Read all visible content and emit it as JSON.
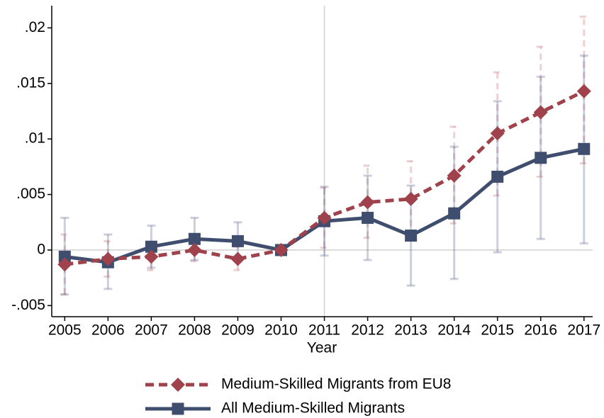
{
  "chart_data": {
    "type": "line",
    "x_label": "Year",
    "x": [
      2005,
      2006,
      2007,
      2008,
      2009,
      2010,
      2011,
      2012,
      2013,
      2014,
      2015,
      2016,
      2017
    ],
    "xlim": [
      2004.7,
      2017.2
    ],
    "xticks": [
      2005,
      2006,
      2007,
      2008,
      2009,
      2010,
      2011,
      2012,
      2013,
      2014,
      2015,
      2016,
      2017
    ],
    "ylim": [
      -0.006,
      0.022
    ],
    "yticks": [
      {
        "value": -0.005,
        "label": "-.005"
      },
      0,
      {
        "value": 0.005,
        "label": ".005"
      },
      {
        "value": 0.01,
        "label": ".01"
      },
      {
        "value": 0.015,
        "label": ".015"
      },
      {
        "value": 0.02,
        "label": ".02"
      }
    ],
    "reference_x": 2011,
    "reference_y": 0,
    "series": [
      {
        "name": "Medium-Skilled Migrants from EU8",
        "color": "#a0424b",
        "dashed": true,
        "marker": "diamond",
        "values": [
          -0.0013,
          -0.0008,
          -0.0006,
          0.0,
          -0.0008,
          0.0,
          0.0029,
          0.0043,
          0.0046,
          0.0067,
          0.0105,
          0.0124,
          0.0143
        ],
        "ci_low": [
          -0.004,
          -0.0024,
          -0.0018,
          -0.001,
          -0.0018,
          0.0,
          0.0002,
          0.0011,
          0.0012,
          0.0024,
          0.0049,
          0.0066,
          0.0078
        ],
        "ci_high": [
          0.0014,
          0.0008,
          0.0006,
          0.0008,
          0.0003,
          0.0,
          0.0056,
          0.0076,
          0.008,
          0.0111,
          0.016,
          0.0183,
          0.021
        ]
      },
      {
        "name": "All Medium-Skilled Migrants",
        "color": "#3f4d6e",
        "dashed": false,
        "marker": "square",
        "values": [
          -0.0006,
          -0.0011,
          0.0003,
          0.001,
          0.0008,
          0.0,
          0.0026,
          0.0029,
          0.0013,
          0.0033,
          0.0066,
          0.0083,
          0.0091
        ],
        "ci_low": [
          -0.004,
          -0.0035,
          -0.0016,
          -0.0009,
          -0.001,
          0.0,
          -0.0005,
          -0.0009,
          -0.0032,
          -0.0026,
          -0.0002,
          0.001,
          0.0006
        ],
        "ci_high": [
          0.0029,
          0.0014,
          0.0022,
          0.0029,
          0.0025,
          0.0,
          0.0057,
          0.0067,
          0.0058,
          0.0093,
          0.0134,
          0.0156,
          0.0175
        ]
      }
    ]
  }
}
